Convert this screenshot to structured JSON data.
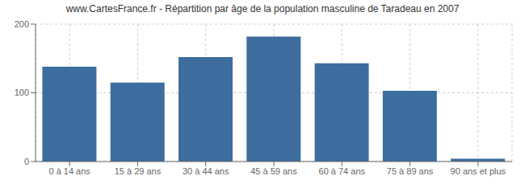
{
  "chart_data": {
    "type": "bar",
    "title": "www.CartesFrance.fr - Répartition par âge de la population masculine de Taradeau en 2007",
    "categories": [
      "0 à 14 ans",
      "15 à 29 ans",
      "30 à 44 ans",
      "45 à 59 ans",
      "60 à 74 ans",
      "75 à 89 ans",
      "90 ans et plus"
    ],
    "values": [
      138,
      115,
      152,
      182,
      143,
      103,
      4
    ],
    "color": "#3d6d9e",
    "ylim": [
      0,
      200
    ],
    "yticks": [
      0,
      100,
      200
    ],
    "grid": true
  }
}
